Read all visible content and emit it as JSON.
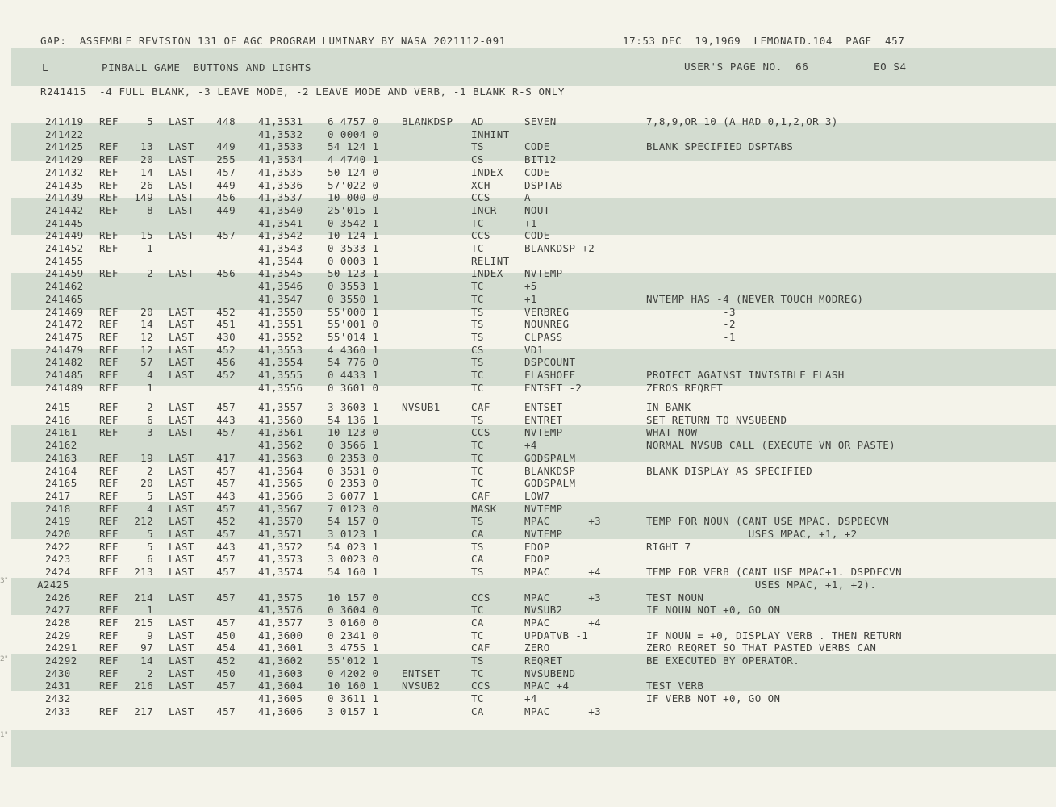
{
  "header": {
    "line": "GAP:  ASSEMBLE REVISION 131 OF AGC PROGRAM LUMINARY BY NASA 2021112-091",
    "stamp": "17:53 DEC  19,1969  LEMONAID.104  PAGE  457",
    "marker": "L",
    "section_title": "PINBALL GAME  BUTTONS AND LIGHTS",
    "users_page": "USER'S PAGE NO.  66",
    "eo": "EO S4",
    "routine_note": "R241415  -4 FULL BLANK, -3 LEAVE MODE, -2 LEAVE MODE AND VERB, -1 BLANK R-S ONLY"
  },
  "margin_marks": [
    "3\"",
    "2\"",
    "1\""
  ],
  "listing": [
    {
      "line": "241419",
      "ref": "REF",
      "refn": "5",
      "last": "LAST",
      "lastn": "448",
      "addr": "41,3531",
      "code": "6 4757 0",
      "label": "BLANKDSP",
      "op": "AD",
      "operand": "SEVEN",
      "comment": "7,8,9,OR 10 (A HAD 0,1,2,OR 3)"
    },
    {
      "line": "241422",
      "ref": "",
      "refn": "",
      "last": "",
      "lastn": "",
      "addr": "41,3532",
      "code": "0 0004 0",
      "label": "",
      "op": "INHINT",
      "operand": "",
      "comment": ""
    },
    {
      "line": "241425",
      "ref": "REF",
      "refn": "13",
      "last": "LAST",
      "lastn": "449",
      "addr": "41,3533",
      "code": "54 124 1",
      "label": "",
      "op": "TS",
      "operand": "CODE",
      "comment": "BLANK SPECIFIED DSPTABS"
    },
    {
      "line": "241429",
      "ref": "REF",
      "refn": "20",
      "last": "LAST",
      "lastn": "255",
      "addr": "41,3534",
      "code": "4 4740 1",
      "label": "",
      "op": "CS",
      "operand": "BIT12",
      "comment": ""
    },
    {
      "line": "241432",
      "ref": "REF",
      "refn": "14",
      "last": "LAST",
      "lastn": "457",
      "addr": "41,3535",
      "code": "50 124 0",
      "label": "",
      "op": "INDEX",
      "operand": "CODE",
      "comment": ""
    },
    {
      "line": "241435",
      "ref": "REF",
      "refn": "26",
      "last": "LAST",
      "lastn": "449",
      "addr": "41,3536",
      "code": "57'022 0",
      "label": "",
      "op": "XCH",
      "operand": "DSPTAB",
      "comment": ""
    },
    {
      "line": "241439",
      "ref": "REF",
      "refn": "149",
      "last": "LAST",
      "lastn": "456",
      "addr": "41,3537",
      "code": "10 000 0",
      "label": "",
      "op": "CCS",
      "operand": "A",
      "comment": ""
    },
    {
      "line": "241442",
      "ref": "REF",
      "refn": "8",
      "last": "LAST",
      "lastn": "449",
      "addr": "41,3540",
      "code": "25'015 1",
      "label": "",
      "op": "INCR",
      "operand": "NOUT",
      "comment": ""
    },
    {
      "line": "241445",
      "ref": "",
      "refn": "",
      "last": "",
      "lastn": "",
      "addr": "41,3541",
      "code": "0 3542 1",
      "label": "",
      "op": "TC",
      "operand": "+1",
      "comment": ""
    },
    {
      "line": "241449",
      "ref": "REF",
      "refn": "15",
      "last": "LAST",
      "lastn": "457",
      "addr": "41,3542",
      "code": "10 124 1",
      "label": "",
      "op": "CCS",
      "operand": "CODE",
      "comment": ""
    },
    {
      "line": "241452",
      "ref": "REF",
      "refn": "1",
      "last": "",
      "lastn": "",
      "addr": "41,3543",
      "code": "0 3533 1",
      "label": "",
      "op": "TC",
      "operand": "BLANKDSP +2",
      "comment": ""
    },
    {
      "line": "241455",
      "ref": "",
      "refn": "",
      "last": "",
      "lastn": "",
      "addr": "41,3544",
      "code": "0 0003 1",
      "label": "",
      "op": "RELINT",
      "operand": "",
      "comment": ""
    },
    {
      "line": "241459",
      "ref": "REF",
      "refn": "2",
      "last": "LAST",
      "lastn": "456",
      "addr": "41,3545",
      "code": "50 123 1",
      "label": "",
      "op": "INDEX",
      "operand": "NVTEMP",
      "comment": ""
    },
    {
      "line": "241462",
      "ref": "",
      "refn": "",
      "last": "",
      "lastn": "",
      "addr": "41,3546",
      "code": "0 3553 1",
      "label": "",
      "op": "TC",
      "operand": "+5",
      "comment": ""
    },
    {
      "line": "241465",
      "ref": "",
      "refn": "",
      "last": "",
      "lastn": "",
      "addr": "41,3547",
      "code": "0 3550 1",
      "label": "",
      "op": "TC",
      "operand": "+1",
      "comment": "NVTEMP HAS -4 (NEVER TOUCH MODREG)"
    },
    {
      "line": "241469",
      "ref": "REF",
      "refn": "20",
      "last": "LAST",
      "lastn": "452",
      "addr": "41,3550",
      "code": "55'000 1",
      "label": "",
      "op": "TS",
      "operand": "VERBREG",
      "comment": "            -3"
    },
    {
      "line": "241472",
      "ref": "REF",
      "refn": "14",
      "last": "LAST",
      "lastn": "451",
      "addr": "41,3551",
      "code": "55'001 0",
      "label": "",
      "op": "TS",
      "operand": "NOUNREG",
      "comment": "            -2"
    },
    {
      "line": "241475",
      "ref": "REF",
      "refn": "12",
      "last": "LAST",
      "lastn": "430",
      "addr": "41,3552",
      "code": "55'014 1",
      "label": "",
      "op": "TS",
      "operand": "CLPASS",
      "comment": "            -1"
    },
    {
      "line": "241479",
      "ref": "REF",
      "refn": "12",
      "last": "LAST",
      "lastn": "452",
      "addr": "41,3553",
      "code": "4 4360 1",
      "label": "",
      "op": "CS",
      "operand": "VD1",
      "comment": ""
    },
    {
      "line": "241482",
      "ref": "REF",
      "refn": "57",
      "last": "LAST",
      "lastn": "456",
      "addr": "41,3554",
      "code": "54 776 0",
      "label": "",
      "op": "TS",
      "operand": "DSPCOUNT",
      "comment": ""
    },
    {
      "line": "241485",
      "ref": "REF",
      "refn": "4",
      "last": "LAST",
      "lastn": "452",
      "addr": "41,3555",
      "code": "0 4433 1",
      "label": "",
      "op": "TC",
      "operand": "FLASHOFF",
      "comment": "PROTECT AGAINST INVISIBLE FLASH"
    },
    {
      "line": "241489",
      "ref": "REF",
      "refn": "1",
      "last": "",
      "lastn": "",
      "addr": "41,3556",
      "code": "0 3601 0",
      "label": "",
      "op": "TC",
      "operand": "ENTSET -2",
      "comment": "ZEROS REQRET"
    },
    {
      "line": "2415",
      "ref": "REF",
      "refn": "2",
      "last": "LAST",
      "lastn": "457",
      "addr": "41,3557",
      "code": "3 3603 1",
      "label": "NVSUB1",
      "op": "CAF",
      "operand": "ENTSET",
      "comment": "IN BANK"
    },
    {
      "line": "2416",
      "ref": "REF",
      "refn": "6",
      "last": "LAST",
      "lastn": "443",
      "addr": "41,3560",
      "code": "54 136 1",
      "label": "",
      "op": "TS",
      "operand": "ENTRET",
      "comment": "SET RETURN TO NVSUBEND"
    },
    {
      "line": "24161",
      "ref": "REF",
      "refn": "3",
      "last": "LAST",
      "lastn": "457",
      "addr": "41,3561",
      "code": "10 123 0",
      "label": "",
      "op": "CCS",
      "operand": "NVTEMP",
      "comment": "WHAT NOW"
    },
    {
      "line": "24162",
      "ref": "",
      "refn": "",
      "last": "",
      "lastn": "",
      "addr": "41,3562",
      "code": "0 3566 1",
      "label": "",
      "op": "TC",
      "operand": "+4",
      "comment": "NORMAL NVSUB CALL (EXECUTE VN OR PASTE)"
    },
    {
      "line": "24163",
      "ref": "REF",
      "refn": "19",
      "last": "LAST",
      "lastn": "417",
      "addr": "41,3563",
      "code": "0 2353 0",
      "label": "",
      "op": "TC",
      "operand": "GODSPALM",
      "comment": ""
    },
    {
      "line": "24164",
      "ref": "REF",
      "refn": "2",
      "last": "LAST",
      "lastn": "457",
      "addr": "41,3564",
      "code": "0 3531 0",
      "label": "",
      "op": "TC",
      "operand": "BLANKDSP",
      "comment": "BLANK DISPLAY AS SPECIFIED"
    },
    {
      "line": "24165",
      "ref": "REF",
      "refn": "20",
      "last": "LAST",
      "lastn": "457",
      "addr": "41,3565",
      "code": "0 2353 0",
      "label": "",
      "op": "TC",
      "operand": "GODSPALM",
      "comment": ""
    },
    {
      "line": "2417",
      "ref": "REF",
      "refn": "5",
      "last": "LAST",
      "lastn": "443",
      "addr": "41,3566",
      "code": "3 6077 1",
      "label": "",
      "op": "CAF",
      "operand": "LOW7",
      "comment": ""
    },
    {
      "line": "2418",
      "ref": "REF",
      "refn": "4",
      "last": "LAST",
      "lastn": "457",
      "addr": "41,3567",
      "code": "7 0123 0",
      "label": "",
      "op": "MASK",
      "operand": "NVTEMP",
      "comment": ""
    },
    {
      "line": "2419",
      "ref": "REF",
      "refn": "212",
      "last": "LAST",
      "lastn": "452",
      "addr": "41,3570",
      "code": "54 157 0",
      "label": "",
      "op": "TS",
      "operand": "MPAC      +3",
      "comment": "TEMP FOR NOUN (CANT USE MPAC. DSPDECVN"
    },
    {
      "line": "2420",
      "ref": "REF",
      "refn": "5",
      "last": "LAST",
      "lastn": "457",
      "addr": "41,3571",
      "code": "3 0123 1",
      "label": "",
      "op": "CA",
      "operand": "NVTEMP",
      "comment": "                USES MPAC, +1, +2"
    },
    {
      "line": "2422",
      "ref": "REF",
      "refn": "5",
      "last": "LAST",
      "lastn": "443",
      "addr": "41,3572",
      "code": "54 023 1",
      "label": "",
      "op": "TS",
      "operand": "EDOP",
      "comment": "RIGHT 7"
    },
    {
      "line": "2423",
      "ref": "REF",
      "refn": "6",
      "last": "LAST",
      "lastn": "457",
      "addr": "41,3573",
      "code": "3 0023 0",
      "label": "",
      "op": "CA",
      "operand": "EDOP",
      "comment": ""
    },
    {
      "line": "2424",
      "ref": "REF",
      "refn": "213",
      "last": "LAST",
      "lastn": "457",
      "addr": "41,3574",
      "code": "54 160 1",
      "label": "",
      "op": "TS",
      "operand": "MPAC      +4",
      "comment": "TEMP FOR VERB (CANT USE MPAC+1. DSPDECVN"
    },
    {
      "line": "A2425",
      "ref": "",
      "refn": "",
      "last": "",
      "lastn": "",
      "addr": "",
      "code": "",
      "label": "",
      "op": "",
      "operand": "",
      "comment": "                 USES MPAC, +1, +2)."
    },
    {
      "line": "2426",
      "ref": "REF",
      "refn": "214",
      "last": "LAST",
      "lastn": "457",
      "addr": "41,3575",
      "code": "10 157 0",
      "label": "",
      "op": "CCS",
      "operand": "MPAC      +3",
      "comment": "TEST NOUN"
    },
    {
      "line": "2427",
      "ref": "REF",
      "refn": "1",
      "last": "",
      "lastn": "",
      "addr": "41,3576",
      "code": "0 3604 0",
      "label": "",
      "op": "TC",
      "operand": "NVSUB2",
      "comment": "IF NOUN NOT +0, GO ON"
    },
    {
      "line": "2428",
      "ref": "REF",
      "refn": "215",
      "last": "LAST",
      "lastn": "457",
      "addr": "41,3577",
      "code": "3 0160 0",
      "label": "",
      "op": "CA",
      "operand": "MPAC      +4",
      "comment": ""
    },
    {
      "line": "2429",
      "ref": "REF",
      "refn": "9",
      "last": "LAST",
      "lastn": "450",
      "addr": "41,3600",
      "code": "0 2341 0",
      "label": "",
      "op": "TC",
      "operand": "UPDATVB -1",
      "comment": "IF NOUN = +0, DISPLAY VERB . THEN RETURN"
    },
    {
      "line": "24291",
      "ref": "REF",
      "refn": "97",
      "last": "LAST",
      "lastn": "454",
      "addr": "41,3601",
      "code": "3 4755 1",
      "label": "",
      "op": "CAF",
      "operand": "ZERO",
      "comment": "ZERO REQRET SO THAT PASTED VERBS CAN"
    },
    {
      "line": "24292",
      "ref": "REF",
      "refn": "14",
      "last": "LAST",
      "lastn": "452",
      "addr": "41,3602",
      "code": "55'012 1",
      "label": "",
      "op": "TS",
      "operand": "REQRET",
      "comment": "BE EXECUTED BY OPERATOR."
    },
    {
      "line": "2430",
      "ref": "REF",
      "refn": "2",
      "last": "LAST",
      "lastn": "450",
      "addr": "41,3603",
      "code": "0 4202 0",
      "label": "ENTSET",
      "op": "TC",
      "operand": "NVSUBEND",
      "comment": ""
    },
    {
      "line": "2431",
      "ref": "REF",
      "refn": "216",
      "last": "LAST",
      "lastn": "457",
      "addr": "41,3604",
      "code": "10 160 1",
      "label": "NVSUB2",
      "op": "CCS",
      "operand": "MPAC +4",
      "comment": "TEST VERB"
    },
    {
      "line": "2432",
      "ref": "",
      "refn": "",
      "last": "",
      "lastn": "",
      "addr": "41,3605",
      "code": "0 3611 1",
      "label": "",
      "op": "TC",
      "operand": "+4",
      "comment": "IF VERB NOT +0, GO ON"
    },
    {
      "line": "2433",
      "ref": "REF",
      "refn": "217",
      "last": "LAST",
      "lastn": "457",
      "addr": "41,3606",
      "code": "3 0157 1",
      "label": "",
      "op": "CA",
      "operand": "MPAC      +3",
      "comment": ""
    }
  ]
}
